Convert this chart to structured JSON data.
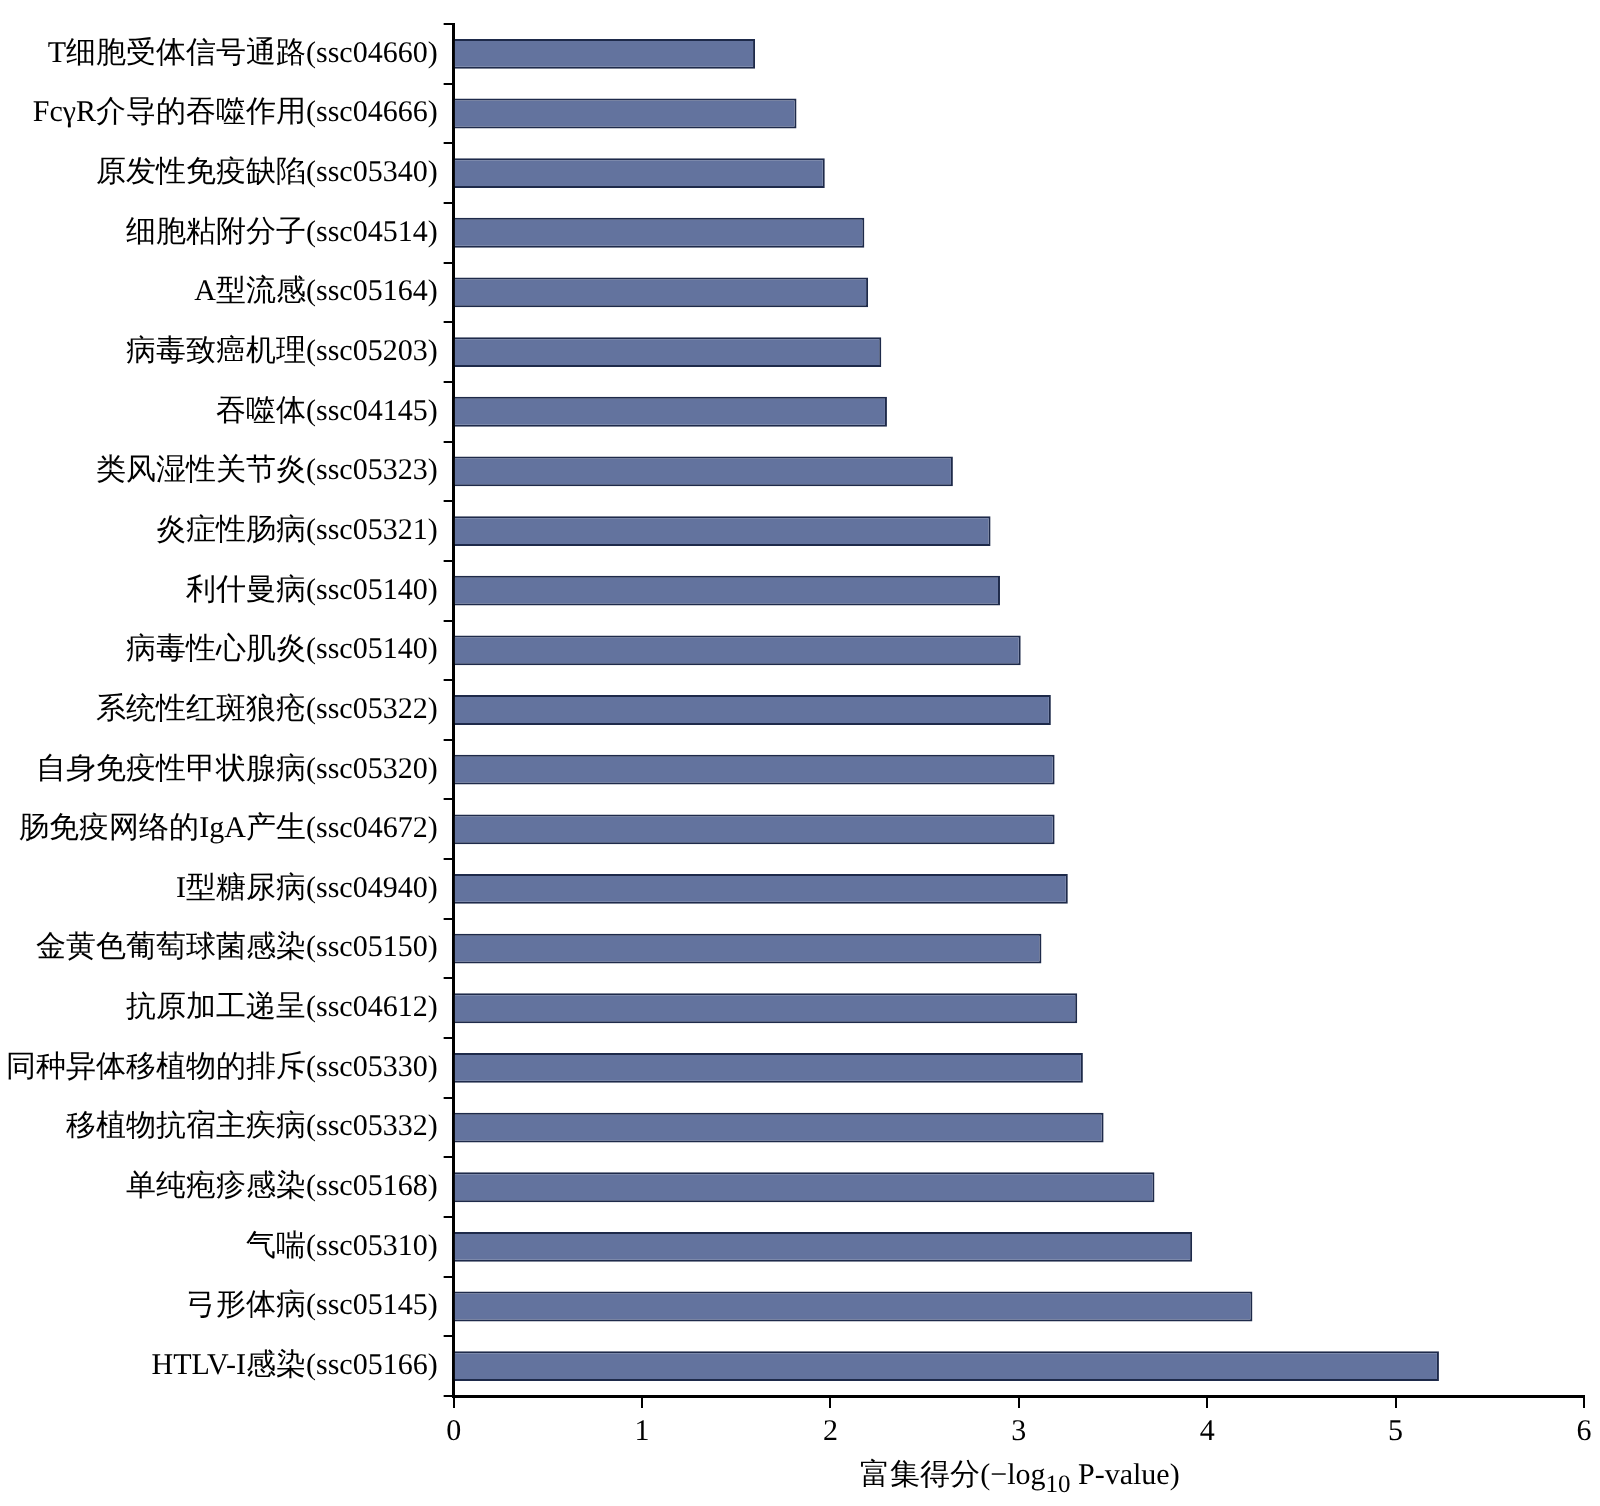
{
  "chart_data": {
    "type": "bar",
    "orientation": "horizontal",
    "xlabel": "富集得分(−log$_{10}$ P-value)",
    "categories": [
      "T细胞受体信号通路(ssc04660)",
      "FcγR介导的吞噬作用(ssc04666)",
      "原发性免疫缺陷(ssc05340)",
      "细胞粘附分子(ssc04514)",
      "A型流感(ssc05164)",
      "病毒致癌机理(ssc05203)",
      "吞噬体(ssc04145)",
      "类风湿性关节炎(ssc05323)",
      "炎症性肠病(ssc05321)",
      "利什曼病(ssc05140)",
      "病毒性心肌炎(ssc05140)",
      "系统性红斑狼疮(ssc05322)",
      "自身免疫性甲状腺病(ssc05320)",
      "肠免疫网络的IgA产生(ssc04672)",
      "I型糖尿病(ssc04940)",
      "金黄色葡萄球菌感染(ssc05150)",
      "抗原加工递呈(ssc04612)",
      "同种异体移植物的排斥(ssc05330)",
      "移植物抗宿主疾病(ssc05332)",
      "单纯疱疹感染(ssc05168)",
      "气喘(ssc05310)",
      "弓形体病(ssc05145)",
      "HTLV-I感染(ssc05166)"
    ],
    "values": [
      1.6,
      1.82,
      1.97,
      2.18,
      2.2,
      2.27,
      2.3,
      2.65,
      2.85,
      2.9,
      3.01,
      3.17,
      3.19,
      3.19,
      3.26,
      3.12,
      3.31,
      3.34,
      3.45,
      3.72,
      3.92,
      4.24,
      5.23
    ],
    "color": "#63739e",
    "xlim": [
      0,
      6
    ],
    "xticks": [
      0,
      1,
      2,
      3,
      4,
      5,
      6
    ],
    "grid": false,
    "legend": false
  }
}
